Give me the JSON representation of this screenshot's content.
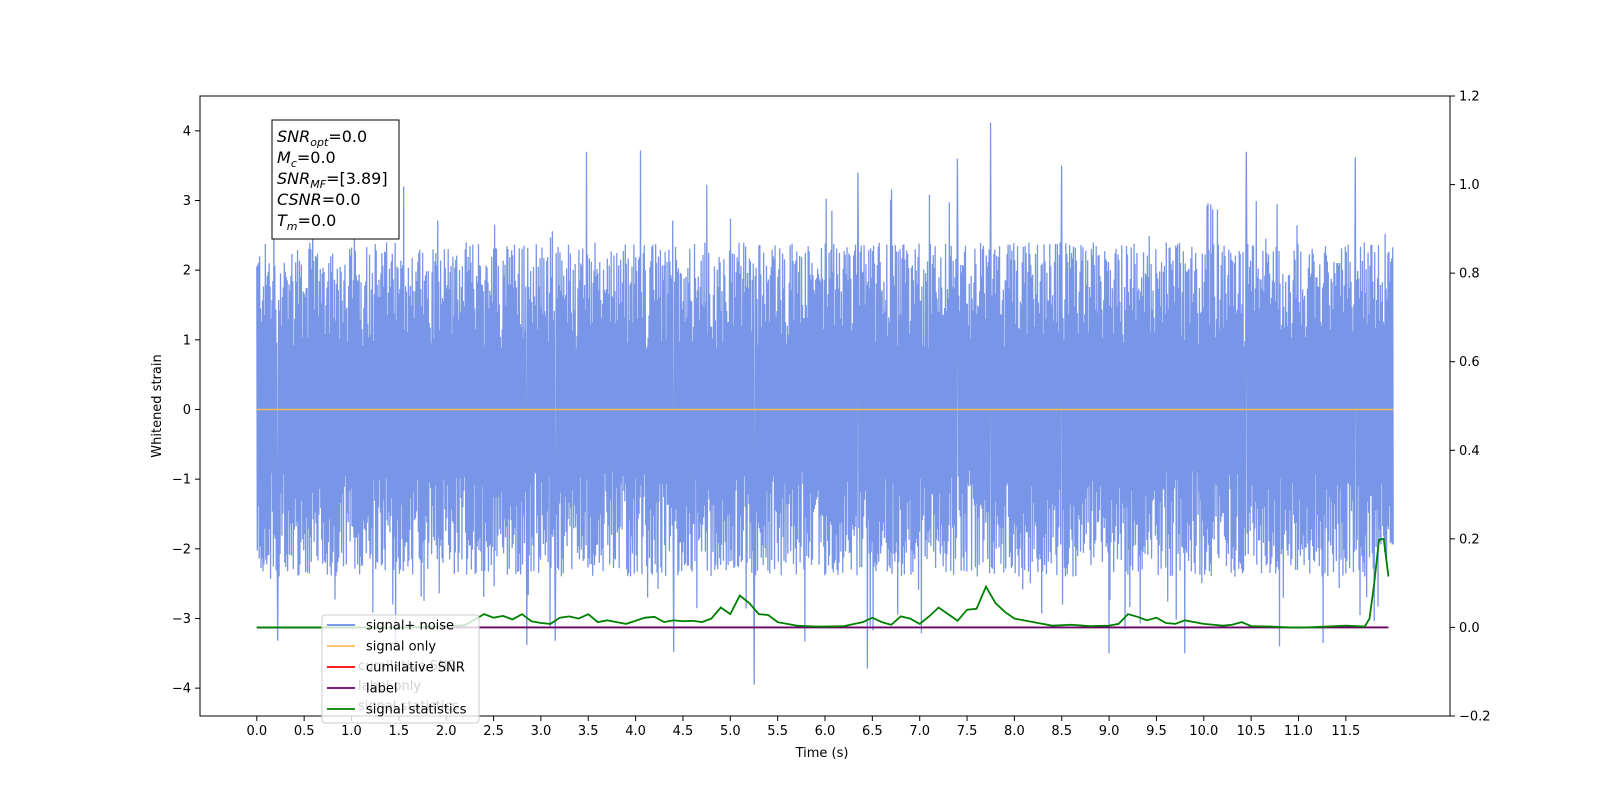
{
  "chart_data": {
    "type": "line",
    "xlabel": "Time (s)",
    "ylabel": "Whitened strain",
    "xlim": [
      -0.6,
      12.6
    ],
    "ylim": [
      -4.4,
      4.5
    ],
    "y2lim": [
      -0.2,
      1.2
    ],
    "x_ticks": [
      0.0,
      0.5,
      1.0,
      1.5,
      2.0,
      2.5,
      3.0,
      3.5,
      4.0,
      4.5,
      5.0,
      5.5,
      6.0,
      6.5,
      7.0,
      7.5,
      8.0,
      8.5,
      9.0,
      9.5,
      10.0,
      10.5,
      11.0,
      11.5
    ],
    "x_tick_labels": [
      "0.0",
      "0.5",
      "1.0",
      "1.5",
      "2.0",
      "2.5",
      "3.0",
      "3.5",
      "4.0",
      "4.5",
      "5.0",
      "5.5",
      "6.0",
      "6.5",
      "7.0",
      "7.5",
      "8.0",
      "8.5",
      "9.0",
      "9.5",
      "10.0",
      "10.5",
      "11.0",
      "11.5"
    ],
    "y_ticks": [
      -4,
      -3,
      -2,
      -1,
      0,
      1,
      2,
      3,
      4
    ],
    "y_tick_labels": [
      "−4",
      "−3",
      "−2",
      "−1",
      "0",
      "1",
      "2",
      "3",
      "4"
    ],
    "y2_ticks": [
      -0.2,
      0.0,
      0.2,
      0.4,
      0.6,
      0.8,
      1.0,
      1.2
    ],
    "y2_tick_labels": [
      "−0.2",
      "0.0",
      "0.2",
      "0.4",
      "0.6",
      "0.8",
      "1.0",
      "1.2"
    ],
    "grid": false,
    "legend_position": "lower-left",
    "colors": {
      "signal_noise": "#6c8ce5",
      "signal_only": "#ffbe55",
      "cumulative_snr": "#ff0000",
      "label": "#6a0066",
      "signal_statistics": "#008000"
    },
    "legend": [
      {
        "name": "signal+ noise",
        "color": "#6c8ce5"
      },
      {
        "name": "signal only",
        "color": "#ffbe55"
      },
      {
        "name": "cumilative SNR",
        "color": "#ff0000"
      },
      {
        "name": "label",
        "color": "#6a0066"
      },
      {
        "name": "signal statistics",
        "color": "#008000"
      }
    ],
    "legend_ghost_text": [
      "cumilative SNR",
      "label only",
      "signal statistics"
    ],
    "series": [
      {
        "name": "signal+ noise",
        "axis": "left",
        "x_range": [
          0.0,
          12.0
        ],
        "sample_count": 2400,
        "typical_min": -2.4,
        "typical_max": 2.4,
        "spikes": [
          {
            "x": 3.48,
            "y": 3.7
          },
          {
            "x": 4.05,
            "y": 3.72
          },
          {
            "x": 7.75,
            "y": 4.12
          },
          {
            "x": 7.4,
            "y": 3.6
          },
          {
            "x": 10.45,
            "y": 3.7
          },
          {
            "x": 11.6,
            "y": 3.62
          },
          {
            "x": 1.55,
            "y": 3.2
          },
          {
            "x": 8.5,
            "y": 3.5
          },
          {
            "x": 6.35,
            "y": 3.4
          },
          {
            "x": 0.22,
            "y": -3.32
          },
          {
            "x": 5.25,
            "y": -3.95
          },
          {
            "x": 6.45,
            "y": -3.72
          },
          {
            "x": 4.4,
            "y": -3.48
          },
          {
            "x": 9.0,
            "y": -3.5
          },
          {
            "x": 9.8,
            "y": -3.5
          },
          {
            "x": 10.8,
            "y": -3.4
          },
          {
            "x": 2.85,
            "y": -3.38
          },
          {
            "x": 3.15,
            "y": -3.32
          }
        ]
      },
      {
        "name": "signal only",
        "axis": "left",
        "x": [
          0.0,
          12.0
        ],
        "y": [
          0.0,
          0.0
        ]
      },
      {
        "name": "label",
        "axis": "right",
        "x": [
          0.0,
          11.95
        ],
        "y": [
          0.0,
          0.0
        ]
      },
      {
        "name": "signal statistics",
        "axis": "right",
        "x": [
          0.0,
          0.5,
          1.0,
          1.5,
          2.0,
          2.2,
          2.4,
          2.5,
          2.6,
          2.7,
          2.8,
          2.9,
          3.0,
          3.1,
          3.2,
          3.3,
          3.4,
          3.5,
          3.6,
          3.7,
          3.8,
          3.9,
          4.0,
          4.1,
          4.2,
          4.3,
          4.4,
          4.5,
          4.6,
          4.7,
          4.8,
          4.9,
          5.0,
          5.1,
          5.2,
          5.3,
          5.4,
          5.5,
          5.6,
          5.7,
          5.8,
          5.9,
          6.0,
          6.2,
          6.4,
          6.5,
          6.6,
          6.7,
          6.8,
          6.9,
          7.0,
          7.1,
          7.2,
          7.3,
          7.4,
          7.5,
          7.6,
          7.7,
          7.8,
          7.9,
          8.0,
          8.2,
          8.4,
          8.6,
          8.8,
          9.0,
          9.1,
          9.2,
          9.3,
          9.4,
          9.5,
          9.6,
          9.7,
          9.8,
          9.9,
          10.0,
          10.1,
          10.2,
          10.3,
          10.4,
          10.5,
          10.7,
          10.9,
          11.1,
          11.3,
          11.5,
          11.7,
          11.75,
          11.8,
          11.85,
          11.9,
          11.95
        ],
        "y": [
          0.0,
          0.0,
          0.0,
          0.0,
          0.002,
          0.005,
          0.03,
          0.022,
          0.026,
          0.018,
          0.03,
          0.014,
          0.01,
          0.008,
          0.022,
          0.025,
          0.02,
          0.03,
          0.012,
          0.016,
          0.012,
          0.008,
          0.015,
          0.022,
          0.024,
          0.012,
          0.016,
          0.014,
          0.015,
          0.012,
          0.02,
          0.045,
          0.03,
          0.072,
          0.055,
          0.03,
          0.028,
          0.012,
          0.008,
          0.004,
          0.003,
          0.002,
          0.002,
          0.003,
          0.012,
          0.022,
          0.012,
          0.006,
          0.025,
          0.02,
          0.008,
          0.025,
          0.045,
          0.03,
          0.015,
          0.04,
          0.042,
          0.092,
          0.055,
          0.035,
          0.02,
          0.012,
          0.004,
          0.006,
          0.003,
          0.004,
          0.008,
          0.03,
          0.024,
          0.016,
          0.022,
          0.01,
          0.008,
          0.016,
          0.012,
          0.008,
          0.006,
          0.004,
          0.006,
          0.012,
          0.003,
          0.002,
          0.0,
          0.0,
          0.002,
          0.004,
          0.002,
          0.02,
          0.1,
          0.198,
          0.2,
          0.115
        ]
      }
    ],
    "annotation": {
      "lines": [
        {
          "var": "SNR",
          "sub": "opt",
          "value": "=0.0"
        },
        {
          "var": "M",
          "sub": "c",
          "value": "=0.0"
        },
        {
          "var": "SNR",
          "sub": "MF",
          "value": "=[3.89]"
        },
        {
          "var": "CSNR",
          "sub": "",
          "value": "=0.0"
        },
        {
          "var": "T",
          "sub": "m",
          "value": "=0.0"
        }
      ]
    }
  }
}
